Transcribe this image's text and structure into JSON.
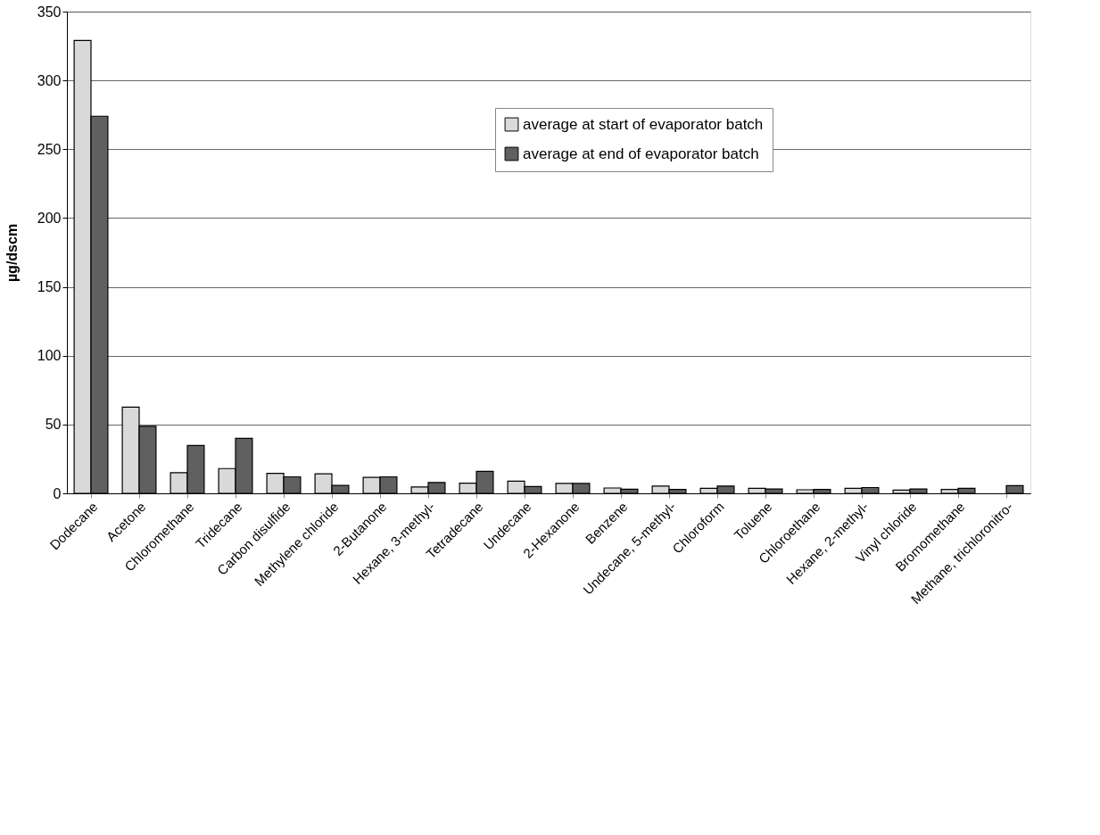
{
  "chart_data": {
    "type": "bar",
    "ylabel": "µg/dscm",
    "categories": [
      "Dodecane",
      "Acetone",
      "Chloromethane",
      "Tridecane",
      "Carbon disulfide",
      "Methylene chloride",
      "2-Butanone",
      "Hexane, 3-methyl-",
      "Tetradecane",
      "Undecane",
      "2-Hexanone",
      "Benzene",
      "Undecane, 5-methyl-",
      "Chloroform",
      "Toluene",
      "Chloroethane",
      "Hexane, 2-methyl-",
      "Vinyl chloride",
      "Bromomethane",
      "Methane, trichloronitro-"
    ],
    "series": [
      {
        "name": "average at start of evaporator batch",
        "color": "#d9d9d9",
        "values": [
          329,
          62.6,
          15,
          18,
          14.5,
          14.2,
          11.6,
          4.6,
          7.4,
          8.8,
          7.2,
          3.9,
          5.3,
          3.7,
          3.7,
          2.6,
          3.7,
          2.3,
          2.8,
          null
        ]
      },
      {
        "name": "average at end of evaporator batch",
        "color": "#606060",
        "values": [
          274,
          48.7,
          34.7,
          39.9,
          12,
          5.8,
          12,
          7.9,
          16,
          5,
          7.2,
          3.0,
          2.8,
          5.3,
          3.2,
          2.8,
          4.2,
          3.2,
          3.7,
          5.6
        ]
      }
    ],
    "ylim": [
      0,
      350
    ],
    "yticks": [
      0,
      50,
      100,
      150,
      200,
      250,
      300,
      350
    ],
    "grid": "y",
    "legend": "top right"
  }
}
